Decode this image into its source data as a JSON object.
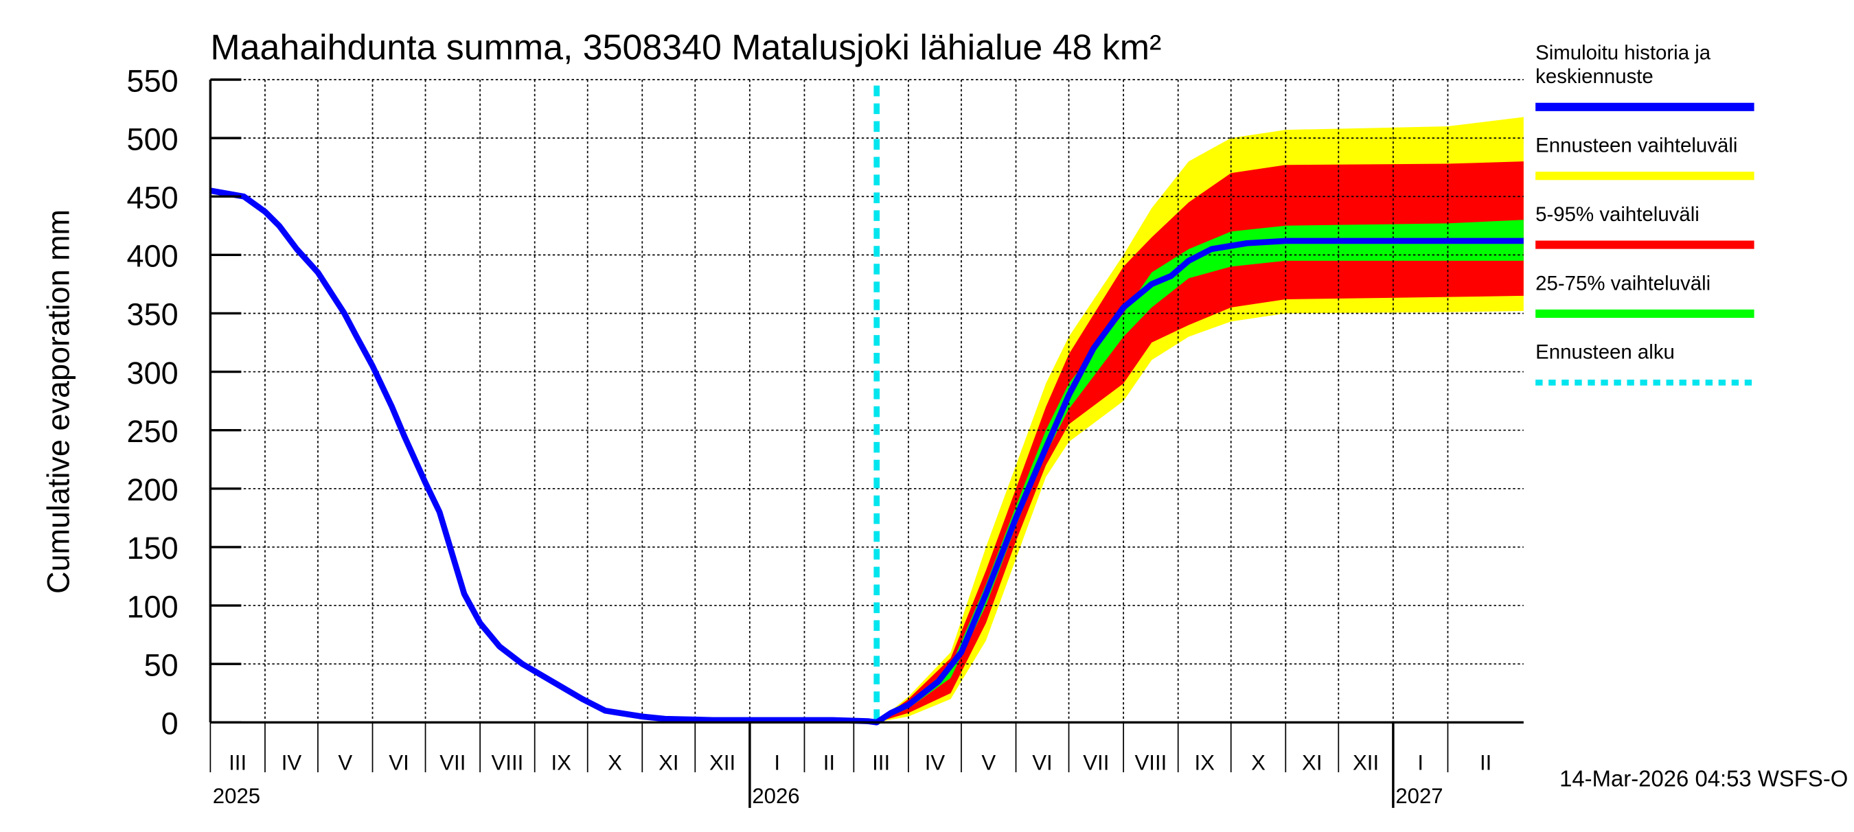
{
  "chart_data": {
    "type": "area",
    "title": "Maahaihdunta summa, 3508340 Matalusjoki lähialue 48 km²",
    "ylabel": "Cumulative evaporation   mm",
    "xlabel": "",
    "ylim": [
      0,
      550
    ],
    "xlim": [
      "2025-03-01",
      "2027-03-16"
    ],
    "yticks": [
      "0",
      "50",
      "100",
      "150",
      "200",
      "250",
      "300",
      "350",
      "400",
      "450",
      "500",
      "550"
    ],
    "grid": true,
    "months": [
      {
        "label": "III",
        "start": "2025-03-01"
      },
      {
        "label": "IV",
        "start": "2025-04-01"
      },
      {
        "label": "V",
        "start": "2025-05-01"
      },
      {
        "label": "VI",
        "start": "2025-06-01"
      },
      {
        "label": "VII",
        "start": "2025-07-01"
      },
      {
        "label": "VIII",
        "start": "2025-08-01"
      },
      {
        "label": "IX",
        "start": "2025-09-01"
      },
      {
        "label": "X",
        "start": "2025-10-01"
      },
      {
        "label": "XI",
        "start": "2025-11-01"
      },
      {
        "label": "XII",
        "start": "2025-12-01"
      },
      {
        "label": "I",
        "start": "2026-01-01"
      },
      {
        "label": "II",
        "start": "2026-02-01"
      },
      {
        "label": "III",
        "start": "2026-03-01"
      },
      {
        "label": "IV",
        "start": "2026-04-01"
      },
      {
        "label": "V",
        "start": "2026-05-01"
      },
      {
        "label": "VI",
        "start": "2026-06-01"
      },
      {
        "label": "VII",
        "start": "2026-07-01"
      },
      {
        "label": "VIII",
        "start": "2026-08-01"
      },
      {
        "label": "IX",
        "start": "2026-09-01"
      },
      {
        "label": "X",
        "start": "2026-10-01"
      },
      {
        "label": "XI",
        "start": "2026-11-01"
      },
      {
        "label": "XII",
        "start": "2026-12-01"
      },
      {
        "label": "I",
        "start": "2027-01-01"
      },
      {
        "label": "II",
        "start": "2027-02-01"
      }
    ],
    "years": [
      {
        "label": "2025",
        "start": "2025-03-01"
      },
      {
        "label": "2026",
        "start": "2026-01-01"
      },
      {
        "label": "2027",
        "start": "2027-01-01"
      }
    ],
    "forecast_start": "2026-03-14",
    "band_dates": [
      "2026-03-14",
      "2026-04-01",
      "2026-04-25",
      "2026-05-15",
      "2026-06-01",
      "2026-06-18",
      "2026-07-01",
      "2026-08-01",
      "2026-08-17",
      "2026-09-07",
      "2026-10-01",
      "2026-11-01",
      "2027-02-01",
      "2027-03-16"
    ],
    "bands": [
      {
        "name": "Ennusteen vaihteluväli",
        "color": "#ffff00",
        "upper": [
          0,
          22,
          60,
          150,
          220,
          290,
          330,
          400,
          440,
          480,
          500,
          507,
          510,
          518
        ],
        "lower": [
          0,
          5,
          20,
          70,
          140,
          210,
          240,
          275,
          310,
          330,
          343,
          350,
          351,
          352
        ]
      },
      {
        "name": "5-95% vaihteluväli",
        "color": "#ff0000",
        "upper": [
          0,
          20,
          55,
          130,
          200,
          270,
          315,
          390,
          415,
          445,
          470,
          477,
          478,
          480
        ],
        "lower": [
          0,
          8,
          25,
          85,
          155,
          220,
          255,
          290,
          325,
          340,
          355,
          362,
          364,
          365
        ]
      },
      {
        "name": "25-75% vaihteluväli",
        "color": "#00ff00",
        "upper": [
          0,
          16,
          48,
          118,
          185,
          250,
          290,
          350,
          385,
          405,
          420,
          425,
          427,
          430
        ],
        "lower": [
          0,
          12,
          38,
          100,
          168,
          230,
          268,
          330,
          355,
          380,
          390,
          395,
          395,
          395
        ]
      }
    ],
    "series": [
      {
        "name": "Simuloitu historia ja keskiennuste",
        "color": "#0000ff",
        "x": [
          "2025-03-01",
          "2025-03-20",
          "2025-04-01",
          "2025-04-09",
          "2025-04-19",
          "2025-05-01",
          "2025-05-16",
          "2025-05-23",
          "2025-06-01",
          "2025-06-12",
          "2025-06-19",
          "2025-07-01",
          "2025-07-09",
          "2025-07-16",
          "2025-07-23",
          "2025-08-01",
          "2025-08-12",
          "2025-08-25",
          "2025-09-11",
          "2025-09-28",
          "2025-10-11",
          "2025-11-01",
          "2025-11-14",
          "2025-12-11",
          "2026-02-17",
          "2026-03-09",
          "2026-03-14",
          "2026-03-22",
          "2026-04-01",
          "2026-04-18",
          "2026-05-01",
          "2026-05-15",
          "2026-06-01",
          "2026-06-18",
          "2026-07-01",
          "2026-07-15",
          "2026-08-01",
          "2026-08-17",
          "2026-08-28",
          "2026-09-07",
          "2026-09-20",
          "2026-10-10",
          "2026-11-01",
          "2027-03-16"
        ],
        "y": [
          455,
          450,
          437,
          425,
          405,
          385,
          350,
          330,
          305,
          270,
          245,
          205,
          180,
          145,
          110,
          85,
          65,
          50,
          35,
          20,
          10,
          5,
          3,
          2,
          2,
          1,
          0,
          8,
          15,
          35,
          60,
          110,
          175,
          235,
          280,
          320,
          355,
          375,
          382,
          395,
          405,
          410,
          412,
          412
        ]
      }
    ],
    "legend": {
      "placement": "right",
      "entries": [
        {
          "label": "Simuloitu historia ja",
          "label2": "keskiennuste",
          "color": "#0000ff",
          "style": "solid"
        },
        {
          "label": "Ennusteen vaihteluväli",
          "color": "#ffff00",
          "style": "solid"
        },
        {
          "label": "5-95% vaihteluväli",
          "color": "#ff0000",
          "style": "solid"
        },
        {
          "label": "25-75% vaihteluväli",
          "color": "#00ff00",
          "style": "solid"
        },
        {
          "label": "Ennusteen alku",
          "color": "#00e5ee",
          "style": "dotted"
        }
      ]
    },
    "footer": "14-Mar-2026 04:53 WSFS-O"
  }
}
